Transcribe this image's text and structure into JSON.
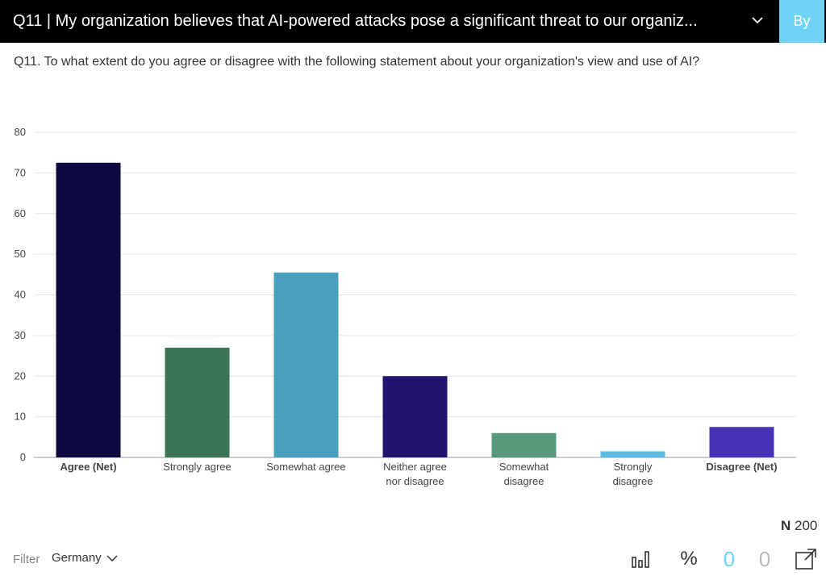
{
  "header": {
    "title": "Q11 | My organization believes that AI-powered attacks pose a significant threat to our organiz...",
    "by_label": "By"
  },
  "question": "Q11. To what extent do you agree or disagree with the following statement about your organization's view and use of AI?",
  "chart_data": {
    "type": "bar",
    "categories": [
      "Agree (Net)",
      "Strongly agree",
      "Somewhat agree",
      "Neither agree nor disagree",
      "Somewhat disagree",
      "Strongly disagree",
      "Disagree (Net)"
    ],
    "category_lines": [
      [
        "Agree (Net)"
      ],
      [
        "Strongly agree"
      ],
      [
        "Somewhat agree"
      ],
      [
        "Neither agree",
        "nor disagree"
      ],
      [
        "Somewhat",
        "disagree"
      ],
      [
        "Strongly",
        "disagree"
      ],
      [
        "Disagree (Net)"
      ]
    ],
    "bold_categories": [
      "Agree (Net)",
      "Disagree (Net)"
    ],
    "values": [
      72.5,
      27,
      45.5,
      20,
      6,
      1.5,
      7.5
    ],
    "colors": [
      "#0e0840",
      "#3a7558",
      "#48a0be",
      "#21146d",
      "#58997b",
      "#5bbde0",
      "#4a32b8"
    ],
    "ylim": [
      0,
      80
    ],
    "yticks": [
      0,
      10,
      20,
      30,
      40,
      50,
      60,
      70,
      80
    ],
    "grid": true
  },
  "footer": {
    "n_prefix": "N",
    "n_value": "200",
    "filter_label": "Filter",
    "filter_value": "Germany",
    "percent_label": "%",
    "count_a": "0",
    "count_b": "0"
  }
}
